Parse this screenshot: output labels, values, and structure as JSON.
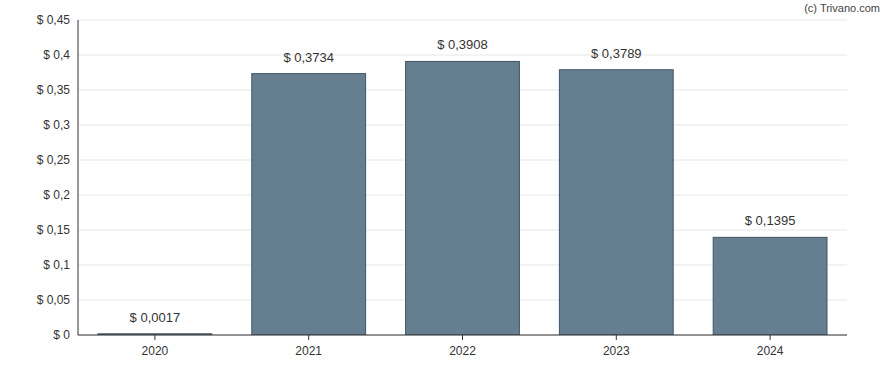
{
  "chart_data": {
    "type": "bar",
    "categories": [
      "2020",
      "2021",
      "2022",
      "2023",
      "2024"
    ],
    "values": [
      0.0017,
      0.3734,
      0.3908,
      0.3789,
      0.1395
    ],
    "value_labels": [
      "$ 0,0017",
      "$ 0,3734",
      "$ 0,3908",
      "$ 0,3789",
      "$ 0,1395"
    ],
    "color": "#657f91",
    "ylim": [
      0,
      0.45
    ],
    "yticks": [
      {
        "value": 0,
        "label": "$ 0"
      },
      {
        "value": 0.05,
        "label": "$ 0,05"
      },
      {
        "value": 0.1,
        "label": "$ 0,1"
      },
      {
        "value": 0.15,
        "label": "$ 0,15"
      },
      {
        "value": 0.2,
        "label": "$ 0,2"
      },
      {
        "value": 0.25,
        "label": "$ 0,25"
      },
      {
        "value": 0.3,
        "label": "$ 0,3"
      },
      {
        "value": 0.35,
        "label": "$ 0,35"
      },
      {
        "value": 0.4,
        "label": "$ 0,4"
      },
      {
        "value": 0.45,
        "label": "$ 0,45"
      }
    ],
    "grid": true,
    "data_labels": true,
    "annotations": [
      "(c) Trivano.com"
    ]
  }
}
